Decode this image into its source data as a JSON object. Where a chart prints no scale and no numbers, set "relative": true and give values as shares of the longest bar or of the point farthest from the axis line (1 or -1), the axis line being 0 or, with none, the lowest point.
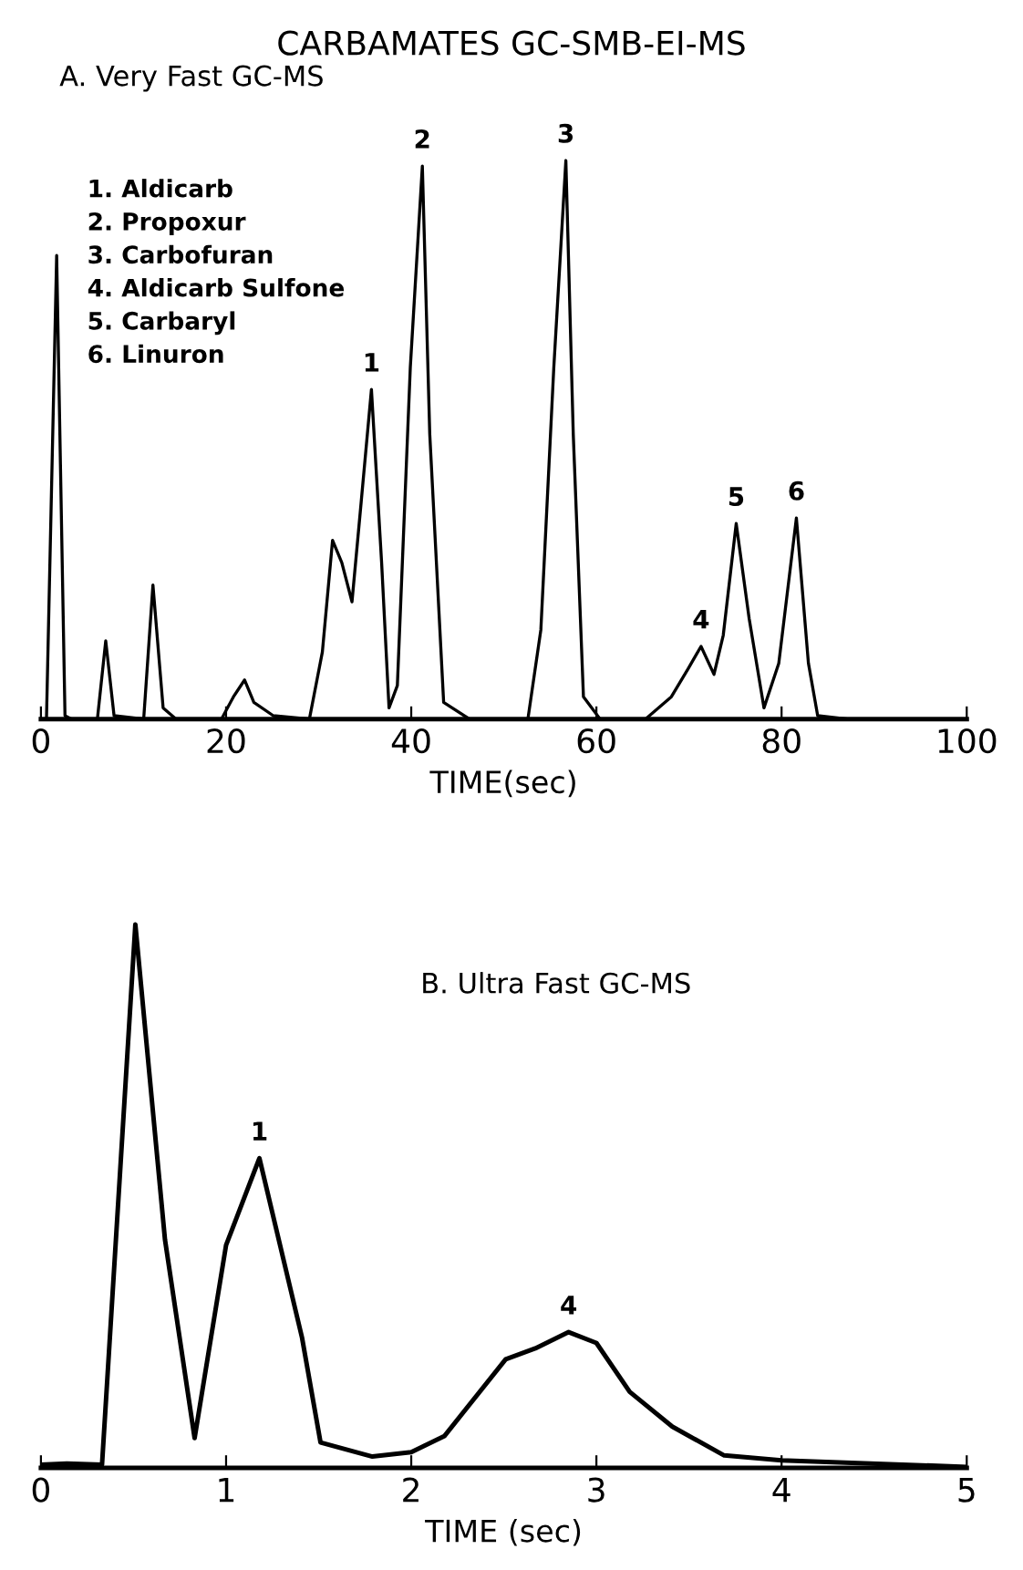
{
  "chart_data": [
    {
      "type": "line",
      "title": "CARBAMATES GC-SMB-EI-MS",
      "subtitle": "A. Very Fast GC-MS",
      "xlabel": "TIME(sec)",
      "relative": true,
      "xlim": [
        0,
        100
      ],
      "xticks": [
        0,
        20,
        40,
        60,
        80,
        100
      ],
      "tick_labels": "x",
      "grid": false,
      "marker": "none",
      "line_style": "solid",
      "x": [
        0,
        0.6,
        1.7,
        2.6,
        3.3,
        6.1,
        7.0,
        7.9,
        11.1,
        12.1,
        13.2,
        14.6,
        19.5,
        20.8,
        22.0,
        23.0,
        25.1,
        29.0,
        30.4,
        31.5,
        32.5,
        33.6,
        34.6,
        35.7,
        36.8,
        37.6,
        38.5,
        39.9,
        41.2,
        42.0,
        43.5,
        46.3,
        52.6,
        54.0,
        55.4,
        56.7,
        57.5,
        58.6,
        60.4,
        65.3,
        68.1,
        69.9,
        71.3,
        72.7,
        73.7,
        75.1,
        76.5,
        78.1,
        79.7,
        81.6,
        82.9,
        83.9,
        87.1,
        100
      ],
      "series": [
        {
          "color": "#000000",
          "values": [
            0,
            0,
            0.83,
            0.006,
            0,
            0,
            0.14,
            0.006,
            0,
            0.24,
            0.02,
            0,
            0,
            0.04,
            0.07,
            0.03,
            0.006,
            0,
            0.12,
            0.32,
            0.28,
            0.21,
            0.39,
            0.59,
            0.28,
            0.02,
            0.06,
            0.63,
            0.99,
            0.51,
            0.03,
            0,
            0,
            0.16,
            0.63,
            1.0,
            0.51,
            0.04,
            0,
            0,
            0.04,
            0.09,
            0.13,
            0.08,
            0.15,
            0.35,
            0.18,
            0.02,
            0.1,
            0.36,
            0.1,
            0.006,
            0,
            0
          ]
        }
      ],
      "annotations": [
        "1. Aldicarb",
        "2. Propoxur",
        "3. Carbofuran",
        "4. Aldicarb Sulfone",
        "5. Carbaryl",
        "6. Linuron",
        {
          "text": "1",
          "x": 35.7,
          "y": 0.59
        },
        {
          "text": "2",
          "x": 41.2,
          "y": 0.99
        },
        {
          "text": "3",
          "x": 56.7,
          "y": 1.0
        },
        {
          "text": "4",
          "x": 71.3,
          "y": 0.13
        },
        {
          "text": "5",
          "x": 75.1,
          "y": 0.35
        },
        {
          "text": "6",
          "x": 81.6,
          "y": 0.36
        }
      ]
    },
    {
      "type": "line",
      "title": "B. Ultra Fast GC-MS",
      "xlabel": "TIME (sec)",
      "relative": true,
      "xlim": [
        0,
        5
      ],
      "xticks": [
        0,
        1,
        2,
        3,
        4,
        5
      ],
      "tick_labels": "x",
      "grid": false,
      "marker": "none",
      "line_style": "solid",
      "x": [
        0,
        0.14,
        0.33,
        0.51,
        0.67,
        0.83,
        1.0,
        1.18,
        1.41,
        1.51,
        1.79,
        2.0,
        2.18,
        2.51,
        2.67,
        2.85,
        3.0,
        3.18,
        3.41,
        3.69,
        4.0,
        5.0
      ],
      "series": [
        {
          "color": "#000000",
          "values": [
            0.006,
            0.008,
            0.006,
            1.0,
            0.42,
            0.055,
            0.41,
            0.57,
            0.24,
            0.047,
            0.021,
            0.029,
            0.059,
            0.2,
            0.22,
            0.25,
            0.23,
            0.14,
            0.076,
            0.023,
            0.014,
            0.002
          ]
        }
      ],
      "annotations": [
        {
          "text": "1",
          "x": 1.18,
          "y": 0.57
        },
        {
          "text": "4",
          "x": 2.85,
          "y": 0.25
        }
      ]
    }
  ]
}
